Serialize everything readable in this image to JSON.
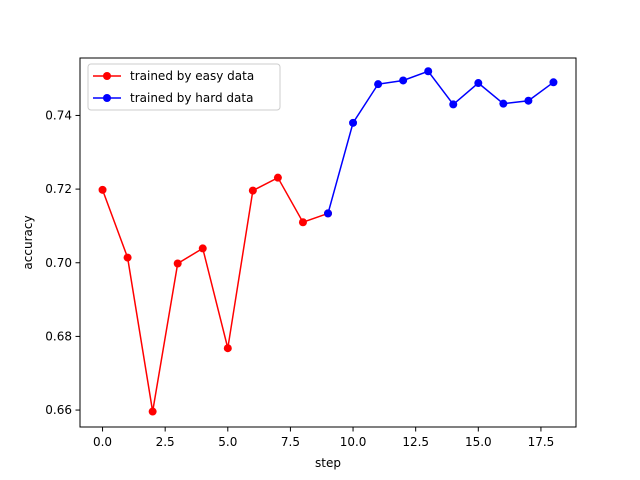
{
  "chart_data": {
    "type": "line",
    "title": "",
    "xlabel": "step",
    "ylabel": "accuracy",
    "xlim": [
      -0.9,
      18.9
    ],
    "ylim": [
      0.6554,
      0.7556
    ],
    "xticks": [
      0.0,
      2.5,
      5.0,
      7.5,
      10.0,
      12.5,
      15.0,
      17.5
    ],
    "xtick_labels": [
      "0.0",
      "2.5",
      "5.0",
      "7.5",
      "10.0",
      "12.5",
      "15.0",
      "17.5"
    ],
    "yticks": [
      0.66,
      0.68,
      0.7,
      0.72,
      0.74
    ],
    "ytick_labels": [
      "0.66",
      "0.68",
      "0.70",
      "0.72",
      "0.74"
    ],
    "grid": false,
    "legend_position": "top-left",
    "series": [
      {
        "name": "trained by easy data",
        "color": "#ff0000",
        "x": [
          0,
          1,
          2,
          3,
          4,
          5,
          6,
          7,
          8,
          9
        ],
        "y": [
          0.7198,
          0.7014,
          0.6596,
          0.6998,
          0.7039,
          0.6768,
          0.7196,
          0.7231,
          0.711,
          0.7134
        ]
      },
      {
        "name": "trained by hard data",
        "color": "#0000ff",
        "x": [
          9,
          10,
          11,
          12,
          13,
          14,
          15,
          16,
          17,
          18
        ],
        "y": [
          0.7134,
          0.738,
          0.7485,
          0.7495,
          0.752,
          0.743,
          0.7488,
          0.7432,
          0.744,
          0.749
        ]
      }
    ]
  }
}
